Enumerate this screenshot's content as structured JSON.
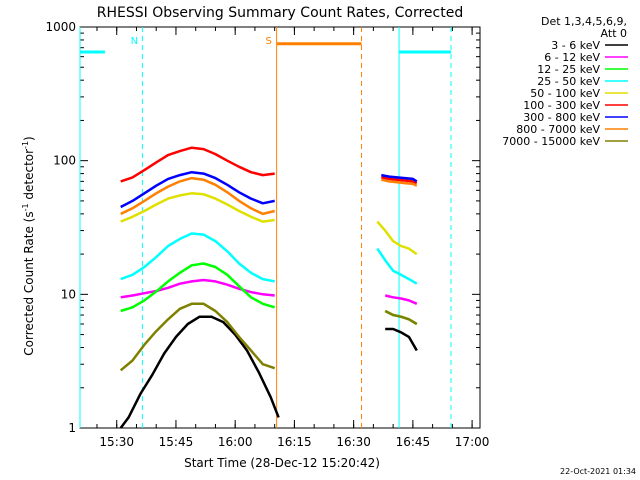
{
  "chart_data": {
    "type": "line",
    "title": "RHESSI Observing Summary Count Rates, Corrected",
    "xlabel": "Start Time (28-Dec-12 15:20:42)",
    "ylabel_main": "Corrected Count Rate (s",
    "ylabel_sup1": "-1",
    "ylabel_mid": " detector",
    "ylabel_sup2": "-1",
    "ylabel_end": ")",
    "y_scale": "log",
    "ylim": [
      1,
      1000
    ],
    "xlim": [
      "15:20:42",
      "17:02:00"
    ],
    "x_ticks": [
      "15:30",
      "15:45",
      "16:00",
      "16:15",
      "16:30",
      "16:45",
      "17:00"
    ],
    "y_ticks": [
      "1",
      "10",
      "100",
      "1000"
    ],
    "legend_header": [
      "Det 1,3,4,5,6,9,",
      "Att 0"
    ],
    "legend_placement": "right",
    "timestamp": "22-Oct-2021 01:34",
    "series": [
      {
        "name": "3 - 6 keV",
        "color": "#000000",
        "segments": [
          {
            "x": [
              "15:31",
              "15:33",
              "15:36",
              "15:39",
              "15:42",
              "15:45",
              "15:48",
              "15:51",
              "15:54",
              "15:57",
              "16:00",
              "16:03",
              "16:06",
              "16:09",
              "16:11"
            ],
            "y": [
              0.8,
              1.2,
              1.8,
              2.5,
              3.6,
              4.8,
              6.0,
              6.8,
              6.8,
              6.2,
              5.0,
              3.8,
              2.6,
              1.7,
              1.2
            ]
          },
          {
            "x": [
              "16:38",
              "16:40",
              "16:42",
              "16:44",
              "16:46"
            ],
            "y": [
              5.5,
              5.5,
              5.2,
              4.8,
              3.8
            ]
          }
        ]
      },
      {
        "name": "6 - 12 keV",
        "color": "#ff00ff",
        "segments": [
          {
            "x": [
              "15:31",
              "15:34",
              "15:37",
              "15:40",
              "15:43",
              "15:46",
              "15:49",
              "15:52",
              "15:55",
              "15:58",
              "16:01",
              "16:04",
              "16:07",
              "16:10"
            ],
            "y": [
              9.5,
              9.8,
              10.2,
              10.6,
              11.2,
              12.0,
              12.5,
              12.8,
              12.5,
              11.8,
              11.0,
              10.4,
              10.0,
              9.8
            ]
          },
          {
            "x": [
              "16:38",
              "16:40",
              "16:42",
              "16:44",
              "16:46"
            ],
            "y": [
              9.8,
              9.5,
              9.3,
              9.0,
              8.5
            ]
          }
        ]
      },
      {
        "name": "12 - 25 keV",
        "color": "#00ff00",
        "segments": [
          {
            "x": [
              "15:31",
              "15:34",
              "15:37",
              "15:40",
              "15:43",
              "15:46",
              "15:49",
              "15:52",
              "15:55",
              "15:58",
              "16:01",
              "16:04",
              "16:07",
              "16:10"
            ],
            "y": [
              7.5,
              8.0,
              9.0,
              10.5,
              12.5,
              14.5,
              16.5,
              17.0,
              16.0,
              14.0,
              11.5,
              9.5,
              8.5,
              8.0
            ]
          },
          {
            "x": [
              "16:38",
              "16:40",
              "16:42",
              "16:44",
              "16:46"
            ],
            "y": [
              7.5,
              7.0,
              6.8,
              6.5,
              6.0
            ]
          }
        ]
      },
      {
        "name": "25 - 50 keV",
        "color": "#00ffff",
        "segments": [
          {
            "x": [
              "15:31",
              "15:34",
              "15:37",
              "15:40",
              "15:43",
              "15:46",
              "15:49",
              "15:52",
              "15:55",
              "15:58",
              "16:01",
              "16:04",
              "16:07",
              "16:10"
            ],
            "y": [
              13.0,
              14.0,
              16.0,
              19.0,
              23.0,
              26.0,
              28.5,
              28.0,
              25.0,
              21.0,
              17.0,
              14.5,
              13.0,
              12.5
            ]
          },
          {
            "x": [
              "16:36",
              "16:38",
              "16:40",
              "16:42",
              "16:44",
              "16:46"
            ],
            "y": [
              22.0,
              18.0,
              15.0,
              14.0,
              13.0,
              12.0
            ]
          }
        ]
      },
      {
        "name": "50 - 100 keV",
        "color": "#e0e000",
        "segments": [
          {
            "x": [
              "15:31",
              "15:34",
              "15:37",
              "15:40",
              "15:43",
              "15:46",
              "15:49",
              "15:52",
              "15:55",
              "15:58",
              "16:01",
              "16:04",
              "16:07",
              "16:10"
            ],
            "y": [
              35.0,
              38.0,
              42.0,
              47.0,
              52.0,
              55.0,
              57.0,
              56.0,
              52.0,
              47.0,
              42.0,
              38.0,
              35.0,
              36.0
            ]
          },
          {
            "x": [
              "16:36",
              "16:38",
              "16:40",
              "16:42",
              "16:44",
              "16:46"
            ],
            "y": [
              35.0,
              30.0,
              25.0,
              23.0,
              22.0,
              20.0
            ]
          }
        ]
      },
      {
        "name": "100 - 300 keV",
        "color": "#ff0000",
        "segments": [
          {
            "x": [
              "15:31",
              "15:34",
              "15:37",
              "15:40",
              "15:43",
              "15:46",
              "15:49",
              "15:52",
              "15:55",
              "15:58",
              "16:01",
              "16:04",
              "16:07",
              "16:10"
            ],
            "y": [
              70.0,
              75.0,
              85.0,
              97.0,
              110.0,
              118.0,
              125.0,
              122.0,
              112.0,
              100.0,
              90.0,
              82.0,
              78.0,
              80.0
            ]
          },
          {
            "x": [
              "16:37",
              "16:39",
              "16:41",
              "16:43",
              "16:45",
              "16:46"
            ],
            "y": [
              75.0,
              73.0,
              72.0,
              71.0,
              70.0,
              68.0
            ]
          }
        ]
      },
      {
        "name": "300 - 800 keV",
        "color": "#0000ff",
        "segments": [
          {
            "x": [
              "15:31",
              "15:34",
              "15:37",
              "15:40",
              "15:43",
              "15:46",
              "15:49",
              "15:52",
              "15:55",
              "15:58",
              "16:01",
              "16:04",
              "16:07",
              "16:10"
            ],
            "y": [
              45.0,
              50.0,
              57.0,
              65.0,
              73.0,
              78.0,
              82.0,
              80.0,
              74.0,
              66.0,
              58.0,
              52.0,
              48.0,
              50.0
            ]
          },
          {
            "x": [
              "16:37",
              "16:39",
              "16:41",
              "16:43",
              "16:45",
              "16:46"
            ],
            "y": [
              78.0,
              76.0,
              75.0,
              74.0,
              73.0,
              70.0
            ]
          }
        ]
      },
      {
        "name": "800 - 7000 keV",
        "color": "#ff8000",
        "segments": [
          {
            "x": [
              "15:31",
              "15:34",
              "15:37",
              "15:40",
              "15:43",
              "15:46",
              "15:49",
              "15:52",
              "15:55",
              "15:58",
              "16:01",
              "16:04",
              "16:07",
              "16:10"
            ],
            "y": [
              40.0,
              44.0,
              50.0,
              57.0,
              64.0,
              70.0,
              74.0,
              72.0,
              66.0,
              58.0,
              50.0,
              44.0,
              40.0,
              42.0
            ]
          },
          {
            "x": [
              "16:37",
              "16:39",
              "16:41",
              "16:43",
              "16:45",
              "16:46"
            ],
            "y": [
              72.0,
              70.0,
              69.0,
              68.0,
              67.0,
              65.0
            ]
          }
        ]
      },
      {
        "name": "7000 - 15000 keV",
        "color": "#808000",
        "segments": [
          {
            "x": [
              "15:31",
              "15:34",
              "15:37",
              "15:40",
              "15:43",
              "15:46",
              "15:49",
              "15:52",
              "15:55",
              "15:58",
              "16:01",
              "16:04",
              "16:07",
              "16:10"
            ],
            "y": [
              2.7,
              3.2,
              4.2,
              5.3,
              6.5,
              7.8,
              8.5,
              8.5,
              7.5,
              6.2,
              4.8,
              3.8,
              3.0,
              2.8
            ]
          },
          {
            "x": [
              "16:38",
              "16:40",
              "16:42",
              "16:44",
              "16:46"
            ],
            "y": [
              7.5,
              7.0,
              6.8,
              6.5,
              6.0
            ]
          }
        ]
      }
    ],
    "annotations": [
      {
        "kind": "flag_bar",
        "color": "#00ffff",
        "x_start": "15:20:42",
        "x_end": "15:27:00",
        "level": 650
      },
      {
        "kind": "flag_bar",
        "color": "#ff8000",
        "x_start": "16:10:30",
        "x_end": "16:32:00",
        "level": 750
      },
      {
        "kind": "flag_bar",
        "color": "#00ffff",
        "x_start": "16:41:30",
        "x_end": "16:54:40",
        "level": 650
      },
      {
        "kind": "vline",
        "color": "#00ffff",
        "style": "solid",
        "x": "15:20:42"
      },
      {
        "kind": "vline",
        "color": "#00ffff",
        "style": "dashed",
        "x": "15:36:30",
        "label": "N"
      },
      {
        "kind": "vline",
        "color": "#ff8000",
        "style": "solid",
        "x": "16:10:30",
        "label": "S"
      },
      {
        "kind": "vline",
        "color": "#ff8000",
        "style": "dashed",
        "x": "16:32:00"
      },
      {
        "kind": "vline",
        "color": "#00ffff",
        "style": "solid",
        "x": "16:41:30"
      },
      {
        "kind": "vline",
        "color": "#00ffff",
        "style": "dashed",
        "x": "16:54:40"
      }
    ],
    "grid": false
  }
}
